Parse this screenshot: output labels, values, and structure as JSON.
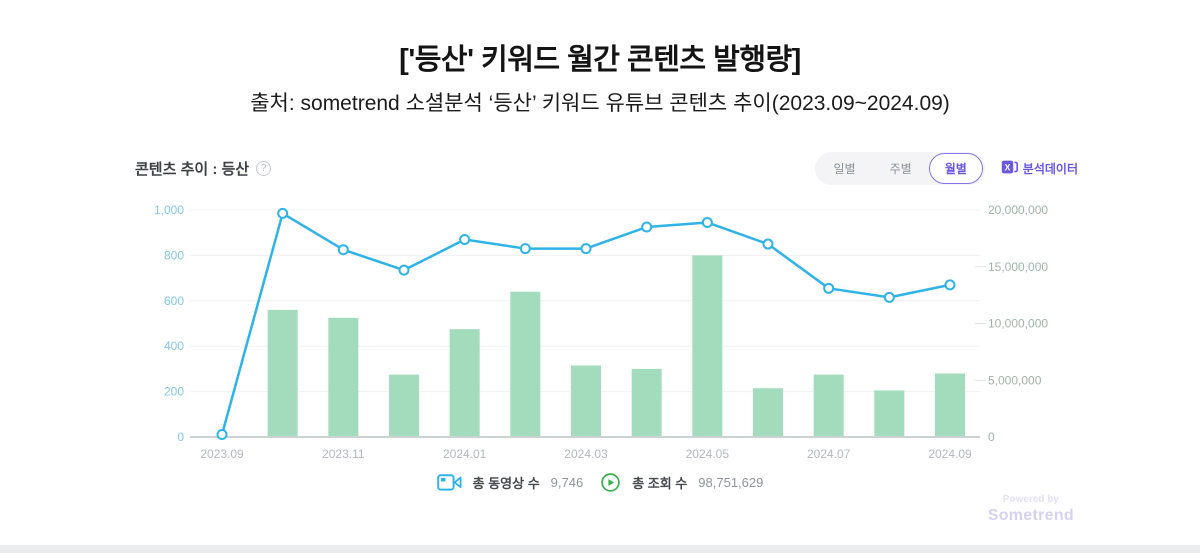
{
  "page": {
    "title": "['등산' 키워드 월간 콘텐츠 발행량]",
    "subtitle": "출처: sometrend 소셜분석 ‘등산’ 키워드 유튜브 콘텐츠 추이(2023.09~2024.09)"
  },
  "widget": {
    "title": "콘텐츠 추이 : 등산",
    "help_glyph": "?",
    "period_tabs": [
      {
        "label": "일별",
        "selected": false
      },
      {
        "label": "주별",
        "selected": false
      },
      {
        "label": "월별",
        "selected": true
      }
    ],
    "export_label": "분석데이터"
  },
  "summary": {
    "videos_label": "총 동영상 수",
    "videos_value": "9,746",
    "views_label": "총 조회 수",
    "views_value": "98,751,629"
  },
  "footer": {
    "powered_by": "Powered by",
    "brand": "Sometrend"
  },
  "colors": {
    "line": "#2fb3e6",
    "bar": "#a3dcbd",
    "left_axis_label": "#85c7e6",
    "right_axis_label": "#9fb4a9",
    "x_axis_label": "#b4b8be",
    "grid": "#f0f0f1",
    "baseline": "#ccd1d3",
    "accent_purple": "#6a58e0",
    "legend_video_icon": "#2fb3e6",
    "legend_play_icon": "#38ae4f"
  },
  "chart_data": {
    "type": "combo: line (videos, left axis) + bar (views, right axis)",
    "x": [
      "2023.09",
      "2023.10",
      "2023.11",
      "2023.12",
      "2024.01",
      "2024.02",
      "2024.03",
      "2024.04",
      "2024.05",
      "2024.06",
      "2024.07",
      "2024.08",
      "2024.09"
    ],
    "x_tick_labels": [
      "2023.09",
      "2023.11",
      "2024.01",
      "2024.03",
      "2024.05",
      "2024.07",
      "2024.09"
    ],
    "series": [
      {
        "name": "동영상 수",
        "type": "line",
        "axis": "left",
        "values": [
          11,
          985,
          825,
          735,
          870,
          830,
          830,
          925,
          945,
          850,
          655,
          615,
          670
        ]
      },
      {
        "name": "조회 수",
        "type": "bar",
        "axis": "right",
        "values": [
          0,
          11200000,
          10500000,
          5500000,
          9500000,
          12800000,
          6300000,
          6000000,
          16000000,
          4300000,
          5500000,
          4100000,
          5600000
        ]
      }
    ],
    "left_axis": {
      "min": 0,
      "max": 1000,
      "ticks": [
        0,
        200,
        400,
        600,
        800,
        1000
      ]
    },
    "right_axis": {
      "min": 0,
      "max": 20000000,
      "ticks": [
        0,
        5000000,
        10000000,
        15000000,
        20000000
      ]
    },
    "grid": "horizontal only",
    "legend_position": "bottom-center"
  }
}
